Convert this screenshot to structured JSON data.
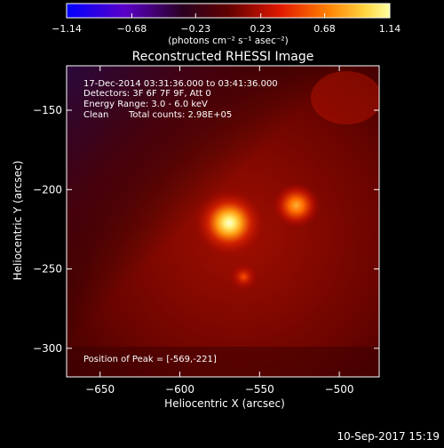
{
  "colorbar": {
    "ticks": [
      "-1.14",
      "-0.68",
      "-0.23",
      "0.23",
      "0.68",
      "1.14"
    ],
    "unit_label": "(photons cm⁻² s⁻¹ asec⁻²)",
    "range": [
      -1.14,
      1.14
    ],
    "colormap": [
      "#0000ff",
      "#6a00b8",
      "#2a0030",
      "#8a0000",
      "#ff3c00",
      "#ffaa00",
      "#ffff66",
      "#ffffff"
    ]
  },
  "chart_data": {
    "type": "heatmap",
    "title": "Reconstructed RHESSI Image",
    "xlabel": "Heliocentric X (arcsec)",
    "ylabel": "Heliocentric Y (arcsec)",
    "xlim": [
      -671,
      -475
    ],
    "ylim": [
      -318,
      -122
    ],
    "x_ticks": [
      -650,
      -600,
      -550,
      -500
    ],
    "y_ticks": [
      -300,
      -250,
      -200,
      -150
    ],
    "x_tick_labels": [
      "−650",
      "−600",
      "−550",
      "−500"
    ],
    "y_tick_labels": [
      "−300",
      "−250",
      "−200",
      "−150"
    ],
    "sources": [
      {
        "x": -569,
        "y": -221,
        "peak": 1.14
      },
      {
        "x": -527,
        "y": -210,
        "peak": 0.62
      },
      {
        "x": -560,
        "y": -255,
        "peak": 0.25
      }
    ]
  },
  "annotations": {
    "time_range": "17-Dec-2014 03:31:36.000 to 03:41:36.000",
    "detectors": "Detectors: 3F 6F 7F 9F, Att 0",
    "energy": "Energy Range: 3.0 - 6.0 keV",
    "clean": "Clean",
    "counts": "Total counts: 2.98E+05",
    "peak": "Position of Peak = [-569,-221]"
  },
  "footer": {
    "timestamp": "10-Sep-2017 15:19"
  }
}
